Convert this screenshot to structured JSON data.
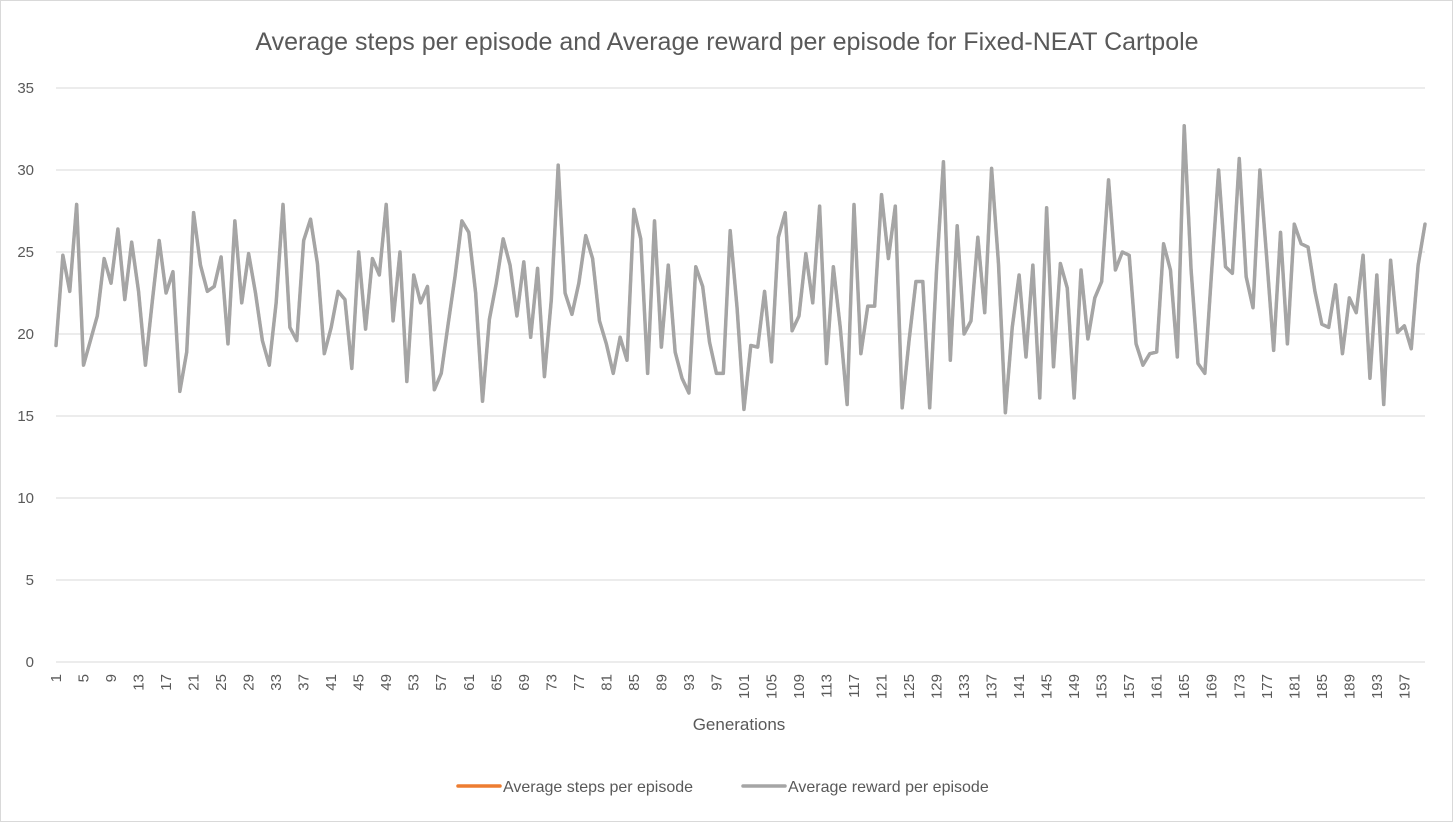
{
  "chart_data": {
    "type": "line",
    "title": "Average steps per episode and Average reward per episode for Fixed-NEAT Cartpole",
    "xlabel": "Generations",
    "ylabel": "",
    "ylim": [
      0,
      35
    ],
    "y_ticks": [
      0,
      5,
      10,
      15,
      20,
      25,
      30,
      35
    ],
    "x": [
      1,
      2,
      3,
      4,
      5,
      6,
      7,
      8,
      9,
      10,
      11,
      12,
      13,
      14,
      15,
      16,
      17,
      18,
      19,
      20,
      21,
      22,
      23,
      24,
      25,
      26,
      27,
      28,
      29,
      30,
      31,
      32,
      33,
      34,
      35,
      36,
      37,
      38,
      39,
      40,
      41,
      42,
      43,
      44,
      45,
      46,
      47,
      48,
      49,
      50,
      51,
      52,
      53,
      54,
      55,
      56,
      57,
      58,
      59,
      60,
      61,
      62,
      63,
      64,
      65,
      66,
      67,
      68,
      69,
      70,
      71,
      72,
      73,
      74,
      75,
      76,
      77,
      78,
      79,
      80,
      81,
      82,
      83,
      84,
      85,
      86,
      87,
      88,
      89,
      90,
      91,
      92,
      93,
      94,
      95,
      96,
      97,
      98,
      99,
      100,
      101,
      102,
      103,
      104,
      105,
      106,
      107,
      108,
      109,
      110,
      111,
      112,
      113,
      114,
      115,
      116,
      117,
      118,
      119,
      120,
      121,
      122,
      123,
      124,
      125,
      126,
      127,
      128,
      129,
      130,
      131,
      132,
      133,
      134,
      135,
      136,
      137,
      138,
      139,
      140,
      141,
      142,
      143,
      144,
      145,
      146,
      147,
      148,
      149,
      150,
      151,
      152,
      153,
      154,
      155,
      156,
      157,
      158,
      159,
      160,
      161,
      162,
      163,
      164,
      165,
      166,
      167,
      168,
      169,
      170,
      171,
      172,
      173,
      174,
      175,
      176,
      177,
      178,
      179,
      180,
      181,
      182,
      183,
      184,
      185,
      186,
      187,
      188,
      189,
      190,
      191,
      192,
      193,
      194,
      195,
      196,
      197,
      198,
      199,
      200
    ],
    "x_tick_labels": [
      "1",
      "5",
      "9",
      "13",
      "17",
      "21",
      "25",
      "29",
      "33",
      "37",
      "41",
      "45",
      "49",
      "53",
      "57",
      "61",
      "65",
      "69",
      "73",
      "77",
      "81",
      "85",
      "89",
      "93",
      "97",
      "101",
      "105",
      "109",
      "113",
      "117",
      "121",
      "125",
      "129",
      "133",
      "137",
      "141",
      "145",
      "149",
      "153",
      "157",
      "161",
      "165",
      "169",
      "173",
      "177",
      "181",
      "185",
      "189",
      "193",
      "197"
    ],
    "legend_position": "bottom",
    "grid": true,
    "series": [
      {
        "name": "Average steps per episode",
        "color": "#ed7d31",
        "values": [
          19.3,
          24.8,
          22.6,
          27.9,
          18.1,
          19.6,
          21.1,
          24.6,
          23.1,
          26.4,
          22.1,
          25.6,
          22.6,
          18.1,
          22.0,
          25.7,
          22.5,
          23.8,
          16.5,
          18.9,
          27.4,
          24.2,
          22.6,
          22.9,
          24.7,
          19.4,
          26.9,
          21.9,
          24.9,
          22.5,
          19.6,
          18.1,
          21.9,
          27.9,
          20.4,
          19.6,
          25.7,
          27.0,
          24.3,
          18.8,
          20.4,
          22.6,
          22.1,
          17.9,
          25.0,
          20.3,
          24.6,
          23.6,
          27.9,
          20.8,
          25.0,
          17.1,
          23.6,
          21.9,
          22.9,
          16.6,
          17.6,
          20.6,
          23.5,
          26.9,
          26.2,
          22.5,
          15.9,
          20.9,
          23.1,
          25.8,
          24.2,
          21.1,
          24.4,
          19.8,
          24.0,
          17.4,
          22.1,
          30.3,
          22.5,
          21.2,
          23.1,
          26.0,
          24.6,
          20.8,
          19.4,
          17.6,
          19.8,
          18.4,
          27.6,
          25.8,
          17.6,
          26.9,
          19.2,
          24.2,
          18.9,
          17.3,
          16.4,
          24.1,
          22.9,
          19.5,
          17.6,
          17.6,
          26.3,
          21.6,
          15.4,
          19.3,
          19.2,
          22.6,
          18.3,
          25.9,
          27.4,
          20.2,
          21.1,
          24.9,
          21.9,
          27.8,
          18.2,
          24.1,
          20.4,
          15.7,
          27.9,
          18.8,
          21.7,
          21.7,
          28.5,
          24.6,
          27.8,
          15.5,
          19.6,
          23.2,
          23.2,
          15.5,
          23.9,
          30.5,
          18.4,
          26.6,
          20.0,
          20.8,
          25.9,
          21.3,
          30.1,
          24.3,
          15.2,
          20.4,
          23.6,
          18.6,
          24.2,
          16.1,
          27.7,
          18.0,
          24.3,
          22.8,
          16.1,
          23.9,
          19.7,
          22.2,
          23.2,
          29.4,
          23.9,
          25.0,
          24.8,
          19.4,
          18.1,
          18.8,
          18.9,
          25.5,
          23.9,
          18.6,
          32.7,
          23.9,
          18.2,
          17.6,
          23.9,
          30.0,
          24.1,
          23.7,
          30.7,
          23.5,
          21.6,
          30.0,
          24.6,
          19.0,
          26.2,
          19.4,
          26.7,
          25.5,
          25.3,
          22.6,
          20.6,
          20.4,
          23.0,
          18.8,
          22.2,
          21.3,
          24.8,
          17.3,
          23.6,
          15.7,
          24.5,
          20.1,
          20.5,
          19.1,
          24.2,
          26.7
        ]
      },
      {
        "name": "Average reward per episode",
        "color": "#a5a5a5",
        "values": [
          19.3,
          24.8,
          22.6,
          27.9,
          18.1,
          19.6,
          21.1,
          24.6,
          23.1,
          26.4,
          22.1,
          25.6,
          22.6,
          18.1,
          22.0,
          25.7,
          22.5,
          23.8,
          16.5,
          18.9,
          27.4,
          24.2,
          22.6,
          22.9,
          24.7,
          19.4,
          26.9,
          21.9,
          24.9,
          22.5,
          19.6,
          18.1,
          21.9,
          27.9,
          20.4,
          19.6,
          25.7,
          27.0,
          24.3,
          18.8,
          20.4,
          22.6,
          22.1,
          17.9,
          25.0,
          20.3,
          24.6,
          23.6,
          27.9,
          20.8,
          25.0,
          17.1,
          23.6,
          21.9,
          22.9,
          16.6,
          17.6,
          20.6,
          23.5,
          26.9,
          26.2,
          22.5,
          15.9,
          20.9,
          23.1,
          25.8,
          24.2,
          21.1,
          24.4,
          19.8,
          24.0,
          17.4,
          22.1,
          30.3,
          22.5,
          21.2,
          23.1,
          26.0,
          24.6,
          20.8,
          19.4,
          17.6,
          19.8,
          18.4,
          27.6,
          25.8,
          17.6,
          26.9,
          19.2,
          24.2,
          18.9,
          17.3,
          16.4,
          24.1,
          22.9,
          19.5,
          17.6,
          17.6,
          26.3,
          21.6,
          15.4,
          19.3,
          19.2,
          22.6,
          18.3,
          25.9,
          27.4,
          20.2,
          21.1,
          24.9,
          21.9,
          27.8,
          18.2,
          24.1,
          20.4,
          15.7,
          27.9,
          18.8,
          21.7,
          21.7,
          28.5,
          24.6,
          27.8,
          15.5,
          19.6,
          23.2,
          23.2,
          15.5,
          23.9,
          30.5,
          18.4,
          26.6,
          20.0,
          20.8,
          25.9,
          21.3,
          30.1,
          24.3,
          15.2,
          20.4,
          23.6,
          18.6,
          24.2,
          16.1,
          27.7,
          18.0,
          24.3,
          22.8,
          16.1,
          23.9,
          19.7,
          22.2,
          23.2,
          29.4,
          23.9,
          25.0,
          24.8,
          19.4,
          18.1,
          18.8,
          18.9,
          25.5,
          23.9,
          18.6,
          32.7,
          23.9,
          18.2,
          17.6,
          23.9,
          30.0,
          24.1,
          23.7,
          30.7,
          23.5,
          21.6,
          30.0,
          24.6,
          19.0,
          26.2,
          19.4,
          26.7,
          25.5,
          25.3,
          22.6,
          20.6,
          20.4,
          23.0,
          18.8,
          22.2,
          21.3,
          24.8,
          17.3,
          23.6,
          15.7,
          24.5,
          20.1,
          20.5,
          19.1,
          24.2,
          26.7
        ]
      }
    ]
  }
}
